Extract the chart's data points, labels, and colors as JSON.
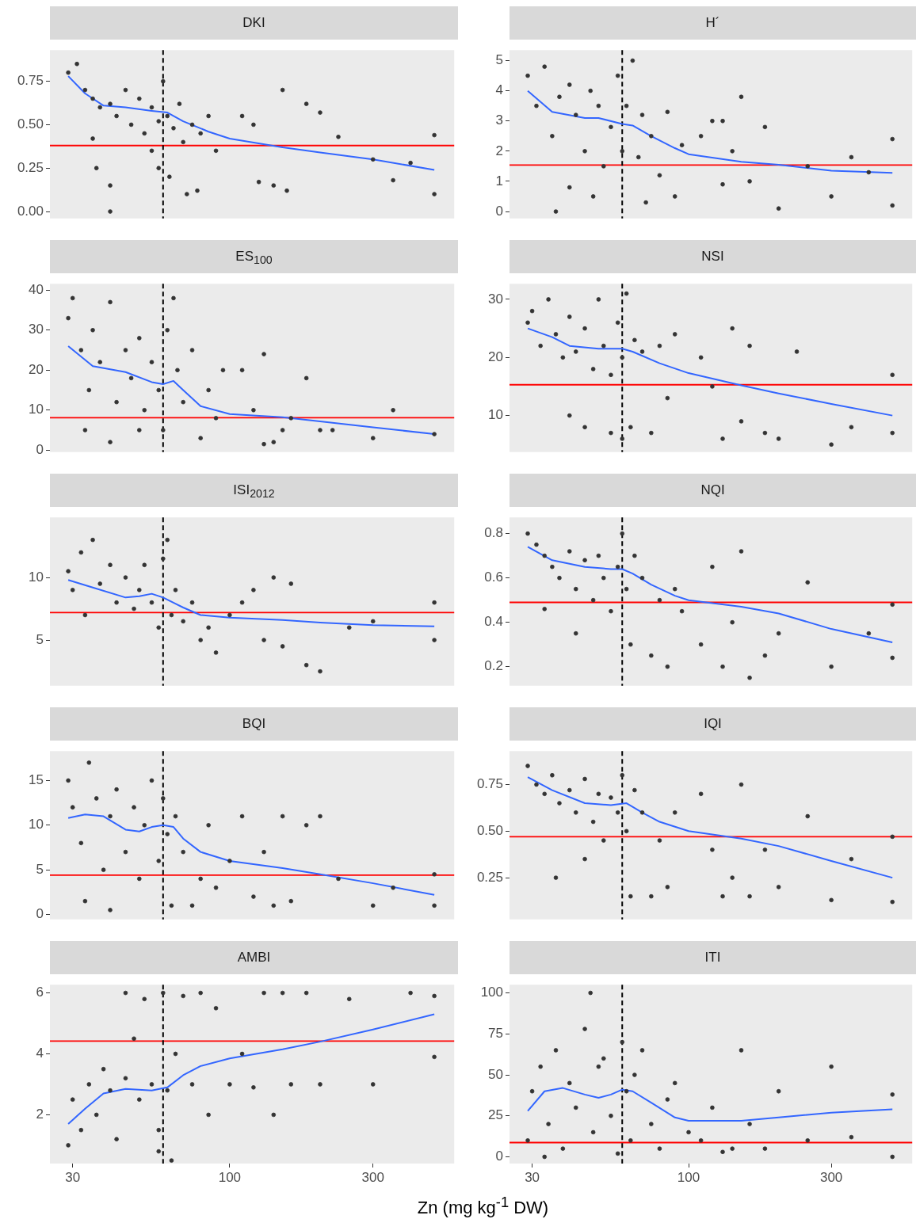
{
  "chart_data": [
    {
      "type": "scatter",
      "title": "DKI",
      "log": "x",
      "xlim": [
        25.2,
        559
      ],
      "xticks": [
        30,
        100,
        300
      ],
      "ylim": [
        -0.04,
        0.93
      ],
      "yticks": [
        {
          "value": 0,
          "label": "0.00"
        },
        {
          "value": 0.25,
          "label": "0.25"
        },
        {
          "value": 0.5,
          "label": "0.50"
        },
        {
          "value": 0.75,
          "label": "0.75"
        }
      ],
      "tick_labels": "y",
      "ref_lines": [
        {
          "axis": "y",
          "value": 0.38,
          "color": "#ff0000",
          "line_style": "solid"
        },
        {
          "axis": "x",
          "value": 60,
          "color": "#000000",
          "line_style": "dashed"
        }
      ],
      "series": [
        {
          "type": "scatter",
          "marker": "circle",
          "color": "#333333",
          "x": [
            29,
            31,
            33,
            35,
            37,
            40,
            42,
            45,
            47,
            50,
            52,
            55,
            58,
            60,
            62,
            65,
            68,
            70,
            75,
            80,
            85,
            90,
            36,
            40,
            55,
            58,
            63,
            72,
            78,
            110,
            120,
            125,
            140,
            150,
            155,
            180,
            200,
            230,
            300,
            350,
            400,
            480,
            480,
            40,
            35
          ],
          "values": [
            0.8,
            0.85,
            0.7,
            0.65,
            0.6,
            0.62,
            0.55,
            0.7,
            0.5,
            0.65,
            0.45,
            0.6,
            0.52,
            0.75,
            0.55,
            0.48,
            0.62,
            0.4,
            0.5,
            0.45,
            0.55,
            0.35,
            0.25,
            0.15,
            0.35,
            0.25,
            0.2,
            0.1,
            0.12,
            0.55,
            0.5,
            0.17,
            0.15,
            0.7,
            0.12,
            0.62,
            0.57,
            0.43,
            0.3,
            0.18,
            0.28,
            0.44,
            0.1,
            0.0,
            0.42
          ]
        },
        {
          "type": "line",
          "marker": "none",
          "color": "#3366ff",
          "x": [
            29,
            33,
            38,
            45,
            55,
            62,
            70,
            85,
            100,
            150,
            200,
            300,
            480
          ],
          "values": [
            0.78,
            0.68,
            0.61,
            0.6,
            0.58,
            0.57,
            0.52,
            0.46,
            0.42,
            0.37,
            0.34,
            0.3,
            0.24
          ]
        }
      ]
    },
    {
      "type": "scatter",
      "title": "H´",
      "log": "x",
      "xlim": [
        25.2,
        559
      ],
      "xticks": [
        30,
        100,
        300
      ],
      "ylim": [
        -0.23,
        5.35
      ],
      "yticks": [
        0,
        1,
        2,
        3,
        4,
        5
      ],
      "tick_labels": "y",
      "ref_lines": [
        {
          "axis": "y",
          "value": 1.54,
          "color": "#ff0000",
          "line_style": "solid"
        },
        {
          "axis": "x",
          "value": 60,
          "color": "#000000",
          "line_style": "dashed"
        }
      ],
      "series": [
        {
          "type": "scatter",
          "marker": "circle",
          "color": "#333333",
          "x": [
            29,
            31,
            33,
            35,
            37,
            40,
            42,
            45,
            47,
            50,
            52,
            55,
            58,
            60,
            62,
            65,
            68,
            70,
            72,
            75,
            80,
            85,
            90,
            95,
            40,
            36,
            48,
            110,
            120,
            130,
            140,
            150,
            160,
            180,
            200,
            250,
            300,
            350,
            400,
            480,
            480,
            130
          ],
          "values": [
            4.5,
            3.5,
            4.8,
            2.5,
            3.8,
            4.2,
            3.2,
            2.0,
            4.0,
            3.5,
            1.5,
            2.8,
            4.5,
            2.0,
            3.5,
            5.0,
            1.8,
            3.2,
            0.3,
            2.5,
            1.2,
            3.3,
            0.5,
            2.2,
            0.8,
            0.0,
            0.5,
            2.5,
            3.0,
            0.9,
            2.0,
            3.8,
            1.0,
            2.8,
            0.1,
            1.5,
            0.5,
            1.8,
            1.3,
            2.4,
            0.2,
            3.0
          ]
        },
        {
          "type": "line",
          "marker": "none",
          "color": "#3366ff",
          "x": [
            29,
            35,
            45,
            50,
            60,
            65,
            75,
            90,
            100,
            150,
            200,
            300,
            480
          ],
          "values": [
            4.0,
            3.3,
            3.1,
            3.1,
            2.9,
            2.85,
            2.5,
            2.1,
            1.9,
            1.65,
            1.55,
            1.35,
            1.28
          ]
        }
      ]
    },
    {
      "type": "scatter",
      "title": "ES$_{100}$",
      "log": "x",
      "xlim": [
        25.2,
        559
      ],
      "xticks": [
        30,
        100,
        300
      ],
      "ylim": [
        -0.5,
        41.6
      ],
      "yticks": [
        0,
        10,
        20,
        30,
        40
      ],
      "tick_labels": "y",
      "ref_lines": [
        {
          "axis": "y",
          "value": 8.1,
          "color": "#ff0000",
          "line_style": "solid"
        },
        {
          "axis": "x",
          "value": 60,
          "color": "#000000",
          "line_style": "dashed"
        }
      ],
      "series": [
        {
          "type": "scatter",
          "marker": "circle",
          "color": "#333333",
          "x": [
            29,
            30,
            32,
            34,
            35,
            37,
            40,
            42,
            45,
            47,
            50,
            52,
            55,
            58,
            60,
            62,
            65,
            67,
            70,
            75,
            80,
            85,
            90,
            95,
            33,
            40,
            50,
            110,
            120,
            130,
            140,
            150,
            160,
            180,
            200,
            220,
            300,
            350,
            480,
            130
          ],
          "values": [
            33,
            38,
            25,
            15,
            30,
            22,
            37,
            12,
            25,
            18,
            28,
            10,
            22,
            15,
            5,
            30,
            38,
            20,
            12,
            25,
            3,
            15,
            8,
            20,
            5,
            2,
            5,
            20,
            10,
            24,
            2,
            5,
            8,
            18,
            5,
            5,
            3,
            10,
            4,
            1.5
          ]
        },
        {
          "type": "line",
          "marker": "none",
          "color": "#3366ff",
          "x": [
            29,
            35,
            45,
            55,
            60,
            65,
            70,
            80,
            100,
            150,
            200,
            300,
            480
          ],
          "values": [
            26,
            21,
            19.5,
            17,
            16.5,
            17.3,
            15,
            11,
            9,
            8.2,
            7.2,
            5.7,
            4
          ]
        }
      ]
    },
    {
      "type": "scatter",
      "title": "NSI",
      "log": "x",
      "xlim": [
        25.2,
        559
      ],
      "xticks": [
        30,
        100,
        300
      ],
      "ylim": [
        3.7,
        32.7
      ],
      "yticks": [
        10,
        20,
        30
      ],
      "tick_labels": "y",
      "ref_lines": [
        {
          "axis": "y",
          "value": 15.3,
          "color": "#ff0000",
          "line_style": "solid"
        },
        {
          "axis": "x",
          "value": 60,
          "color": "#000000",
          "line_style": "dashed"
        }
      ],
      "series": [
        {
          "type": "scatter",
          "marker": "circle",
          "color": "#333333",
          "x": [
            29,
            30,
            32,
            34,
            36,
            38,
            40,
            42,
            45,
            48,
            50,
            52,
            55,
            58,
            60,
            62,
            64,
            66,
            70,
            75,
            80,
            85,
            90,
            40,
            45,
            55,
            60,
            110,
            120,
            130,
            140,
            150,
            160,
            180,
            200,
            230,
            300,
            350,
            480,
            480
          ],
          "values": [
            26,
            28,
            22,
            30,
            24,
            20,
            27,
            21,
            25,
            18,
            30,
            22,
            17,
            26,
            20,
            31,
            8,
            23,
            21,
            7,
            22,
            13,
            24,
            10,
            8,
            7,
            6,
            20,
            15,
            6,
            25,
            9,
            22,
            7,
            6,
            21,
            5,
            8,
            17,
            7
          ]
        },
        {
          "type": "line",
          "marker": "none",
          "color": "#3366ff",
          "x": [
            29,
            35,
            40,
            50,
            60,
            65,
            80,
            100,
            150,
            200,
            300,
            480
          ],
          "values": [
            25,
            23.5,
            22,
            21.5,
            21.5,
            21,
            19,
            17.3,
            15.2,
            13.8,
            12,
            10
          ]
        }
      ]
    },
    {
      "type": "scatter",
      "title": "ISI$_{2012}$",
      "log": "x",
      "xlim": [
        25.2,
        559
      ],
      "xticks": [
        30,
        100,
        300
      ],
      "ylim": [
        1.35,
        14.8
      ],
      "yticks": [
        5,
        10
      ],
      "tick_labels": "y",
      "ref_lines": [
        {
          "axis": "y",
          "value": 7.2,
          "color": "#ff0000",
          "line_style": "solid"
        },
        {
          "axis": "x",
          "value": 60,
          "color": "#000000",
          "line_style": "dashed"
        }
      ],
      "series": [
        {
          "type": "scatter",
          "marker": "circle",
          "color": "#333333",
          "x": [
            29,
            30,
            32,
            33,
            35,
            37,
            40,
            42,
            45,
            48,
            50,
            52,
            55,
            58,
            60,
            62,
            64,
            66,
            70,
            75,
            80,
            85,
            90,
            110,
            120,
            130,
            140,
            150,
            160,
            180,
            200,
            250,
            300,
            480,
            480,
            100
          ],
          "values": [
            10.5,
            9,
            12,
            7,
            13,
            9.5,
            11,
            8,
            10,
            7.5,
            9,
            11,
            8,
            6,
            11.5,
            13,
            7,
            9,
            6.5,
            8,
            5,
            6,
            4,
            8,
            9,
            5,
            10,
            4.5,
            9.5,
            3,
            2.5,
            6,
            6.5,
            8,
            5,
            7
          ]
        },
        {
          "type": "line",
          "marker": "none",
          "color": "#3366ff",
          "x": [
            29,
            35,
            45,
            50,
            55,
            60,
            70,
            80,
            100,
            150,
            200,
            300,
            480
          ],
          "values": [
            9.8,
            9.2,
            8.4,
            8.5,
            8.7,
            8.4,
            7.6,
            7.0,
            6.8,
            6.6,
            6.4,
            6.2,
            6.1
          ]
        }
      ]
    },
    {
      "type": "scatter",
      "title": "NQI",
      "log": "x",
      "xlim": [
        25.2,
        559
      ],
      "xticks": [
        30,
        100,
        300
      ],
      "ylim": [
        0.114,
        0.873
      ],
      "yticks": [
        0.2,
        0.4,
        0.6,
        0.8
      ],
      "tick_labels": "y",
      "ref_lines": [
        {
          "axis": "y",
          "value": 0.49,
          "color": "#ff0000",
          "line_style": "solid"
        },
        {
          "axis": "x",
          "value": 60,
          "color": "#000000",
          "line_style": "dashed"
        }
      ],
      "series": [
        {
          "type": "scatter",
          "marker": "circle",
          "color": "#333333",
          "x": [
            29,
            31,
            33,
            35,
            37,
            40,
            42,
            45,
            48,
            50,
            52,
            55,
            58,
            60,
            62,
            64,
            66,
            70,
            75,
            80,
            85,
            90,
            95,
            33,
            42,
            110,
            120,
            130,
            140,
            150,
            160,
            180,
            200,
            250,
            300,
            400,
            480,
            480
          ],
          "values": [
            0.8,
            0.75,
            0.7,
            0.65,
            0.6,
            0.72,
            0.55,
            0.68,
            0.5,
            0.7,
            0.6,
            0.45,
            0.65,
            0.8,
            0.55,
            0.3,
            0.7,
            0.6,
            0.25,
            0.5,
            0.2,
            0.55,
            0.45,
            0.46,
            0.35,
            0.3,
            0.65,
            0.2,
            0.4,
            0.72,
            0.15,
            0.25,
            0.35,
            0.58,
            0.2,
            0.35,
            0.48,
            0.24
          ]
        },
        {
          "type": "line",
          "marker": "none",
          "color": "#3366ff",
          "x": [
            29,
            35,
            45,
            55,
            60,
            65,
            75,
            90,
            100,
            150,
            200,
            300,
            480
          ],
          "values": [
            0.74,
            0.68,
            0.65,
            0.64,
            0.64,
            0.62,
            0.57,
            0.52,
            0.5,
            0.47,
            0.44,
            0.37,
            0.31
          ]
        }
      ]
    },
    {
      "type": "scatter",
      "title": "BQI",
      "log": "x",
      "xlim": [
        25.2,
        559
      ],
      "xticks": [
        30,
        100,
        300
      ],
      "ylim": [
        -0.55,
        18.3
      ],
      "yticks": [
        0,
        5,
        10,
        15
      ],
      "tick_labels": "y",
      "ref_lines": [
        {
          "axis": "y",
          "value": 4.4,
          "color": "#ff0000",
          "line_style": "solid"
        },
        {
          "axis": "x",
          "value": 60,
          "color": "#000000",
          "line_style": "dashed"
        }
      ],
      "series": [
        {
          "type": "scatter",
          "marker": "circle",
          "color": "#333333",
          "x": [
            29,
            30,
            32,
            34,
            36,
            38,
            40,
            42,
            45,
            48,
            50,
            52,
            55,
            58,
            60,
            62,
            64,
            66,
            70,
            75,
            80,
            85,
            90,
            33,
            40,
            100,
            110,
            120,
            130,
            140,
            150,
            160,
            180,
            200,
            230,
            300,
            350,
            480,
            480
          ],
          "values": [
            15,
            12,
            8,
            17,
            13,
            5,
            11,
            14,
            7,
            12,
            4,
            10,
            15,
            6,
            13,
            9,
            1,
            11,
            7,
            1,
            4,
            10,
            3,
            1.5,
            0.5,
            6,
            11,
            2,
            7,
            1,
            11,
            1.5,
            10,
            11,
            4,
            1,
            3,
            4.5,
            1
          ]
        },
        {
          "type": "line",
          "marker": "none",
          "color": "#3366ff",
          "x": [
            29,
            33,
            38,
            45,
            50,
            55,
            60,
            65,
            70,
            80,
            100,
            150,
            200,
            300,
            480
          ],
          "values": [
            10.8,
            11.2,
            11,
            9.5,
            9.3,
            9.8,
            10,
            9.8,
            8.5,
            7,
            6,
            5.2,
            4.5,
            3.5,
            2.2
          ]
        }
      ]
    },
    {
      "type": "scatter",
      "title": "IQI",
      "log": "x",
      "xlim": [
        25.2,
        559
      ],
      "xticks": [
        30,
        100,
        300
      ],
      "ylim": [
        0.026,
        0.93
      ],
      "yticks": [
        0.25,
        {
          "value": 0.5,
          "label": "0.50"
        },
        0.75
      ],
      "tick_labels": "y",
      "ref_lines": [
        {
          "axis": "y",
          "value": 0.47,
          "color": "#ff0000",
          "line_style": "solid"
        },
        {
          "axis": "x",
          "value": 60,
          "color": "#000000",
          "line_style": "dashed"
        }
      ],
      "series": [
        {
          "type": "scatter",
          "marker": "circle",
          "color": "#333333",
          "x": [
            29,
            31,
            33,
            35,
            37,
            40,
            42,
            45,
            48,
            50,
            52,
            55,
            58,
            60,
            62,
            64,
            66,
            70,
            75,
            80,
            85,
            90,
            36,
            45,
            110,
            120,
            130,
            140,
            150,
            160,
            180,
            200,
            250,
            300,
            350,
            480,
            480
          ],
          "values": [
            0.85,
            0.75,
            0.7,
            0.8,
            0.65,
            0.72,
            0.6,
            0.78,
            0.55,
            0.7,
            0.45,
            0.68,
            0.6,
            0.8,
            0.5,
            0.15,
            0.72,
            0.6,
            0.15,
            0.45,
            0.2,
            0.6,
            0.25,
            0.35,
            0.7,
            0.4,
            0.15,
            0.25,
            0.75,
            0.15,
            0.4,
            0.2,
            0.58,
            0.13,
            0.35,
            0.47,
            0.12
          ]
        },
        {
          "type": "line",
          "marker": "none",
          "color": "#3366ff",
          "x": [
            29,
            35,
            45,
            55,
            62,
            70,
            80,
            100,
            150,
            200,
            300,
            480
          ],
          "values": [
            0.79,
            0.72,
            0.65,
            0.64,
            0.65,
            0.6,
            0.55,
            0.5,
            0.46,
            0.42,
            0.34,
            0.25
          ]
        }
      ]
    },
    {
      "type": "scatter",
      "title": "AMBI",
      "xlabel": "Zn (mg kg$^{-1}$ DW)",
      "log": "x",
      "xlim": [
        25.2,
        559
      ],
      "xticks": [
        30,
        100,
        300
      ],
      "ylim": [
        0.4,
        6.27
      ],
      "yticks": [
        2,
        4,
        6
      ],
      "ref_lines": [
        {
          "axis": "y",
          "value": 4.42,
          "color": "#ff0000",
          "line_style": "solid"
        },
        {
          "axis": "x",
          "value": 60,
          "color": "#000000",
          "line_style": "dashed"
        }
      ],
      "series": [
        {
          "type": "scatter",
          "marker": "circle",
          "color": "#333333",
          "x": [
            29,
            30,
            32,
            34,
            36,
            38,
            40,
            42,
            45,
            48,
            50,
            52,
            55,
            58,
            60,
            62,
            64,
            66,
            70,
            75,
            80,
            85,
            90,
            100,
            110,
            120,
            130,
            140,
            150,
            160,
            180,
            200,
            250,
            300,
            400,
            480,
            480,
            45,
            58
          ],
          "values": [
            1.0,
            2.5,
            1.5,
            3.0,
            2.0,
            3.5,
            2.8,
            1.2,
            3.2,
            4.5,
            2.5,
            5.8,
            3.0,
            1.5,
            6.0,
            2.8,
            0.5,
            4.0,
            5.9,
            3.0,
            6.0,
            2.0,
            5.5,
            3.0,
            4.0,
            2.9,
            6.0,
            2.0,
            6.0,
            3.0,
            6.0,
            3.0,
            5.8,
            3.0,
            6.0,
            5.9,
            3.9,
            6.0,
            0.8
          ]
        },
        {
          "type": "line",
          "marker": "none",
          "color": "#3366ff",
          "x": [
            29,
            33,
            38,
            45,
            55,
            62,
            70,
            80,
            100,
            150,
            200,
            300,
            480
          ],
          "values": [
            1.7,
            2.2,
            2.7,
            2.85,
            2.8,
            2.9,
            3.3,
            3.6,
            3.85,
            4.15,
            4.4,
            4.8,
            5.3
          ]
        }
      ]
    },
    {
      "type": "scatter",
      "title": "ITI",
      "log": "x",
      "xlim": [
        25.2,
        559
      ],
      "xticks": [
        30,
        100,
        300
      ],
      "ylim": [
        -4.1,
        105
      ],
      "yticks": [
        0,
        25,
        50,
        75,
        100
      ],
      "ref_lines": [
        {
          "axis": "y",
          "value": 8.7,
          "color": "#ff0000",
          "line_style": "solid"
        },
        {
          "axis": "x",
          "value": 60,
          "color": "#000000",
          "line_style": "dashed"
        }
      ],
      "series": [
        {
          "type": "scatter",
          "marker": "circle",
          "color": "#333333",
          "x": [
            29,
            30,
            32,
            34,
            36,
            38,
            40,
            42,
            45,
            48,
            50,
            52,
            55,
            58,
            60,
            62,
            64,
            66,
            70,
            75,
            80,
            85,
            90,
            33,
            47,
            100,
            110,
            120,
            130,
            140,
            150,
            160,
            180,
            200,
            250,
            300,
            350,
            480,
            480
          ],
          "values": [
            10,
            40,
            55,
            20,
            65,
            5,
            45,
            30,
            78,
            15,
            55,
            60,
            25,
            2,
            70,
            40,
            10,
            50,
            65,
            20,
            5,
            35,
            45,
            0,
            100,
            15,
            10,
            30,
            3,
            5,
            65,
            20,
            5,
            40,
            10,
            55,
            12,
            38,
            0
          ]
        },
        {
          "type": "line",
          "marker": "none",
          "color": "#3366ff",
          "x": [
            29,
            33,
            38,
            45,
            50,
            55,
            60,
            65,
            75,
            90,
            100,
            150,
            200,
            300,
            480
          ],
          "values": [
            28,
            40,
            42,
            38,
            36,
            38,
            41,
            40,
            33,
            24,
            22,
            22,
            24,
            27,
            29
          ]
        }
      ]
    }
  ]
}
